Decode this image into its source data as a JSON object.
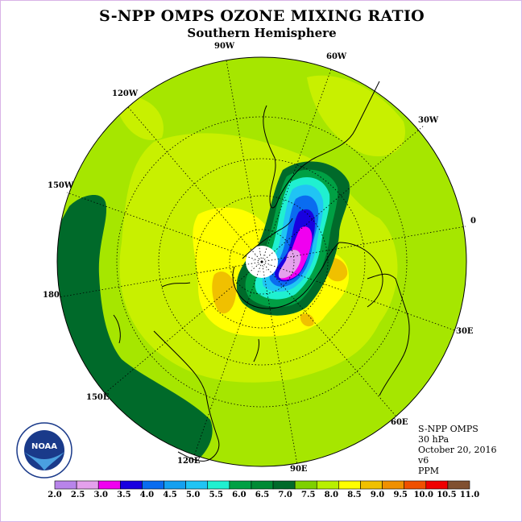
{
  "title": "S-NPP OMPS OZONE MIXING RATIO",
  "subtitle": "Southern Hemisphere",
  "longitude_labels": {
    "l90w": "90W",
    "l60w": "60W",
    "l30w": "30W",
    "l0": "0",
    "l30e": "30E",
    "l60e": "60E",
    "l90e": "90E",
    "l120e": "120E",
    "l150e": "150E",
    "l180": "180",
    "l150w": "150W",
    "l120w": "120W"
  },
  "info": {
    "instrument": "S-NPP OMPS",
    "level": "30 hPa",
    "date": "October 20, 2016",
    "version": "v6",
    "units": "PPM"
  },
  "logo_text": "NOAA",
  "legend": {
    "ticks": [
      "2.0",
      "2.5",
      "3.0",
      "3.5",
      "4.0",
      "4.5",
      "5.0",
      "5.5",
      "6.0",
      "6.5",
      "7.0",
      "7.5",
      "8.0",
      "8.5",
      "9.0",
      "9.5",
      "10.0",
      "10.5",
      "11.0"
    ],
    "colors": [
      "#b884ea",
      "#e4a0ec",
      "#f000f0",
      "#1800e0",
      "#0a6cf0",
      "#14a0f0",
      "#20c4f4",
      "#20f0d0",
      "#00a044",
      "#008a34",
      "#006a2a",
      "#7ed000",
      "#b8f000",
      "#ffff00",
      "#f0c000",
      "#f09000",
      "#f05000",
      "#f00000",
      "#805030"
    ]
  },
  "colors": {
    "base_field": "#a6e600",
    "mid_field": "#c8f000",
    "high_field": "#ffff00",
    "peak_field": "#f0c000",
    "belt": "#006a2a",
    "coast": "#000000"
  }
}
